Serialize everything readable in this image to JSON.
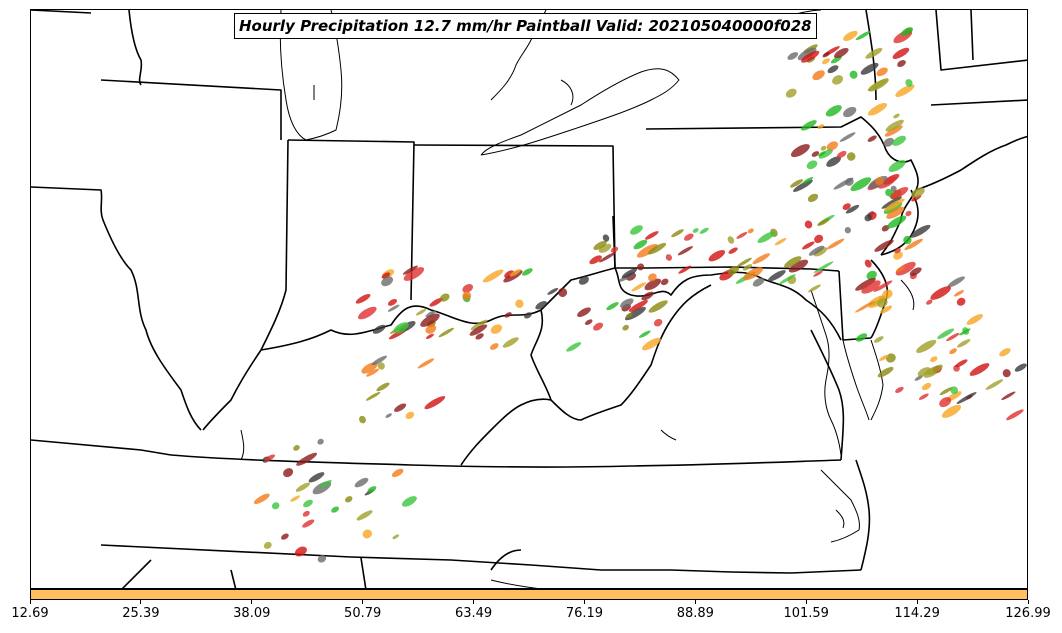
{
  "title": "Hourly Precipitation 12.7 mm/hr Paintball Valid: 202105040000f028",
  "colorbar": {
    "color": "#fdbf62",
    "tick_labels": [
      "12.69",
      "25.39",
      "38.09",
      "50.79",
      "63.49",
      "76.19",
      "88.89",
      "101.59",
      "114.29",
      "126.99"
    ]
  },
  "member_colors": [
    "#d11313",
    "#e03030",
    "#1fb81f",
    "#3cc43c",
    "#8c1a1a",
    "#8a8a10",
    "#f27a1a",
    "#f6a623",
    "#6b6b6b",
    "#3a3a3a",
    "#a0a02a"
  ]
}
